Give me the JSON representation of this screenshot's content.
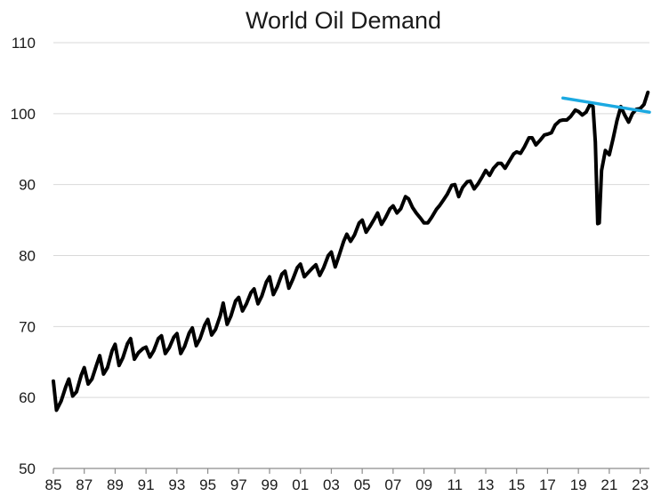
{
  "chart_data": {
    "type": "line",
    "title": "World Oil Demand",
    "xlabel": "",
    "ylabel": "",
    "xlim": [
      1985.0,
      2023.6
    ],
    "ylim": [
      50,
      110
    ],
    "grid": "horizontal",
    "y_ticks": [
      50,
      60,
      70,
      80,
      90,
      100,
      110
    ],
    "x_ticks": [
      {
        "value": 1985,
        "label": "85"
      },
      {
        "value": 1987,
        "label": "87"
      },
      {
        "value": 1989,
        "label": "89"
      },
      {
        "value": 1991,
        "label": "91"
      },
      {
        "value": 1993,
        "label": "93"
      },
      {
        "value": 1995,
        "label": "95"
      },
      {
        "value": 1997,
        "label": "97"
      },
      {
        "value": 1999,
        "label": "99"
      },
      {
        "value": 2001,
        "label": "01"
      },
      {
        "value": 2003,
        "label": "03"
      },
      {
        "value": 2005,
        "label": "05"
      },
      {
        "value": 2007,
        "label": "07"
      },
      {
        "value": 2009,
        "label": "09"
      },
      {
        "value": 2011,
        "label": "11"
      },
      {
        "value": 2013,
        "label": "13"
      },
      {
        "value": 2015,
        "label": "15"
      },
      {
        "value": 2017,
        "label": "17"
      },
      {
        "value": 2019,
        "label": "19"
      },
      {
        "value": 2021,
        "label": "21"
      },
      {
        "value": 2023,
        "label": "23"
      }
    ],
    "series": [
      {
        "color": "#000000",
        "points": [
          [
            1985.0,
            62.3
          ],
          [
            1985.2,
            58.2
          ],
          [
            1985.5,
            59.5
          ],
          [
            1985.8,
            61.5
          ],
          [
            1986.0,
            62.6
          ],
          [
            1986.25,
            60.2
          ],
          [
            1986.5,
            60.8
          ],
          [
            1986.8,
            63.1
          ],
          [
            1987.0,
            64.2
          ],
          [
            1987.25,
            61.9
          ],
          [
            1987.5,
            62.6
          ],
          [
            1987.8,
            64.6
          ],
          [
            1988.0,
            65.9
          ],
          [
            1988.25,
            63.3
          ],
          [
            1988.5,
            64.2
          ],
          [
            1988.8,
            66.6
          ],
          [
            1989.0,
            67.5
          ],
          [
            1989.25,
            64.5
          ],
          [
            1989.5,
            65.6
          ],
          [
            1989.8,
            67.6
          ],
          [
            1990.0,
            68.3
          ],
          [
            1990.25,
            65.4
          ],
          [
            1990.5,
            66.3
          ],
          [
            1990.8,
            66.9
          ],
          [
            1991.0,
            67.1
          ],
          [
            1991.25,
            65.7
          ],
          [
            1991.5,
            66.6
          ],
          [
            1991.8,
            68.3
          ],
          [
            1992.0,
            68.7
          ],
          [
            1992.25,
            66.2
          ],
          [
            1992.5,
            67.0
          ],
          [
            1992.8,
            68.5
          ],
          [
            1993.0,
            69.0
          ],
          [
            1993.25,
            66.2
          ],
          [
            1993.5,
            67.2
          ],
          [
            1993.8,
            69.1
          ],
          [
            1994.0,
            69.8
          ],
          [
            1994.25,
            67.3
          ],
          [
            1994.5,
            68.3
          ],
          [
            1994.8,
            70.2
          ],
          [
            1995.0,
            71.0
          ],
          [
            1995.25,
            68.8
          ],
          [
            1995.5,
            69.6
          ],
          [
            1995.8,
            71.5
          ],
          [
            1996.0,
            73.3
          ],
          [
            1996.25,
            70.3
          ],
          [
            1996.5,
            71.5
          ],
          [
            1996.8,
            73.6
          ],
          [
            1997.0,
            74.1
          ],
          [
            1997.25,
            72.2
          ],
          [
            1997.5,
            73.2
          ],
          [
            1997.8,
            74.8
          ],
          [
            1998.0,
            75.3
          ],
          [
            1998.25,
            73.2
          ],
          [
            1998.5,
            74.3
          ],
          [
            1998.8,
            76.3
          ],
          [
            1999.0,
            77.0
          ],
          [
            1999.25,
            74.5
          ],
          [
            1999.5,
            75.6
          ],
          [
            1999.8,
            77.4
          ],
          [
            2000.0,
            77.8
          ],
          [
            2000.25,
            75.4
          ],
          [
            2000.5,
            76.6
          ],
          [
            2000.8,
            78.3
          ],
          [
            2001.0,
            78.8
          ],
          [
            2001.25,
            77.0
          ],
          [
            2001.5,
            77.6
          ],
          [
            2001.8,
            78.3
          ],
          [
            2002.0,
            78.7
          ],
          [
            2002.25,
            77.2
          ],
          [
            2002.5,
            78.3
          ],
          [
            2002.8,
            80.0
          ],
          [
            2003.0,
            80.5
          ],
          [
            2003.25,
            78.4
          ],
          [
            2003.5,
            80.0
          ],
          [
            2003.8,
            82.0
          ],
          [
            2004.0,
            83.0
          ],
          [
            2004.25,
            82.0
          ],
          [
            2004.5,
            82.9
          ],
          [
            2004.8,
            84.6
          ],
          [
            2005.0,
            85.0
          ],
          [
            2005.25,
            83.3
          ],
          [
            2005.5,
            84.1
          ],
          [
            2005.8,
            85.2
          ],
          [
            2006.0,
            86.0
          ],
          [
            2006.25,
            84.4
          ],
          [
            2006.5,
            85.3
          ],
          [
            2006.8,
            86.6
          ],
          [
            2007.0,
            87.0
          ],
          [
            2007.25,
            86.0
          ],
          [
            2007.5,
            86.6
          ],
          [
            2007.8,
            88.3
          ],
          [
            2008.0,
            88.0
          ],
          [
            2008.25,
            86.8
          ],
          [
            2008.5,
            86.0
          ],
          [
            2008.8,
            85.2
          ],
          [
            2009.0,
            84.6
          ],
          [
            2009.25,
            84.6
          ],
          [
            2009.5,
            85.4
          ],
          [
            2009.8,
            86.5
          ],
          [
            2010.0,
            87.0
          ],
          [
            2010.25,
            87.8
          ],
          [
            2010.5,
            88.6
          ],
          [
            2010.8,
            89.9
          ],
          [
            2011.0,
            90.0
          ],
          [
            2011.25,
            88.3
          ],
          [
            2011.5,
            89.6
          ],
          [
            2011.8,
            90.4
          ],
          [
            2012.0,
            90.5
          ],
          [
            2012.25,
            89.4
          ],
          [
            2012.5,
            90.1
          ],
          [
            2012.8,
            91.2
          ],
          [
            2013.0,
            92.0
          ],
          [
            2013.25,
            91.3
          ],
          [
            2013.5,
            92.3
          ],
          [
            2013.8,
            93.0
          ],
          [
            2014.0,
            93.0
          ],
          [
            2014.25,
            92.3
          ],
          [
            2014.5,
            93.2
          ],
          [
            2014.8,
            94.3
          ],
          [
            2015.0,
            94.6
          ],
          [
            2015.25,
            94.4
          ],
          [
            2015.5,
            95.3
          ],
          [
            2015.8,
            96.6
          ],
          [
            2016.0,
            96.6
          ],
          [
            2016.25,
            95.6
          ],
          [
            2016.5,
            96.2
          ],
          [
            2016.8,
            97.0
          ],
          [
            2017.0,
            97.1
          ],
          [
            2017.25,
            97.3
          ],
          [
            2017.5,
            98.4
          ],
          [
            2017.8,
            99.0
          ],
          [
            2018.0,
            99.1
          ],
          [
            2018.25,
            99.1
          ],
          [
            2018.5,
            99.6
          ],
          [
            2018.8,
            100.5
          ],
          [
            2019.0,
            100.3
          ],
          [
            2019.25,
            99.8
          ],
          [
            2019.5,
            100.2
          ],
          [
            2019.75,
            101.3
          ],
          [
            2019.95,
            101.0
          ],
          [
            2020.1,
            96.0
          ],
          [
            2020.25,
            84.5
          ],
          [
            2020.35,
            84.6
          ],
          [
            2020.5,
            92.0
          ],
          [
            2020.75,
            94.8
          ],
          [
            2021.0,
            94.2
          ],
          [
            2021.25,
            96.5
          ],
          [
            2021.5,
            99.0
          ],
          [
            2021.75,
            101.0
          ],
          [
            2022.0,
            99.8
          ],
          [
            2022.25,
            98.8
          ],
          [
            2022.5,
            100.0
          ],
          [
            2022.75,
            100.6
          ],
          [
            2023.0,
            100.7
          ],
          [
            2023.25,
            101.3
          ],
          [
            2023.5,
            103.0
          ]
        ]
      },
      {
        "color": "#1ba9e1",
        "points": [
          [
            2018.0,
            102.2
          ],
          [
            2023.6,
            100.2
          ]
        ]
      }
    ]
  }
}
